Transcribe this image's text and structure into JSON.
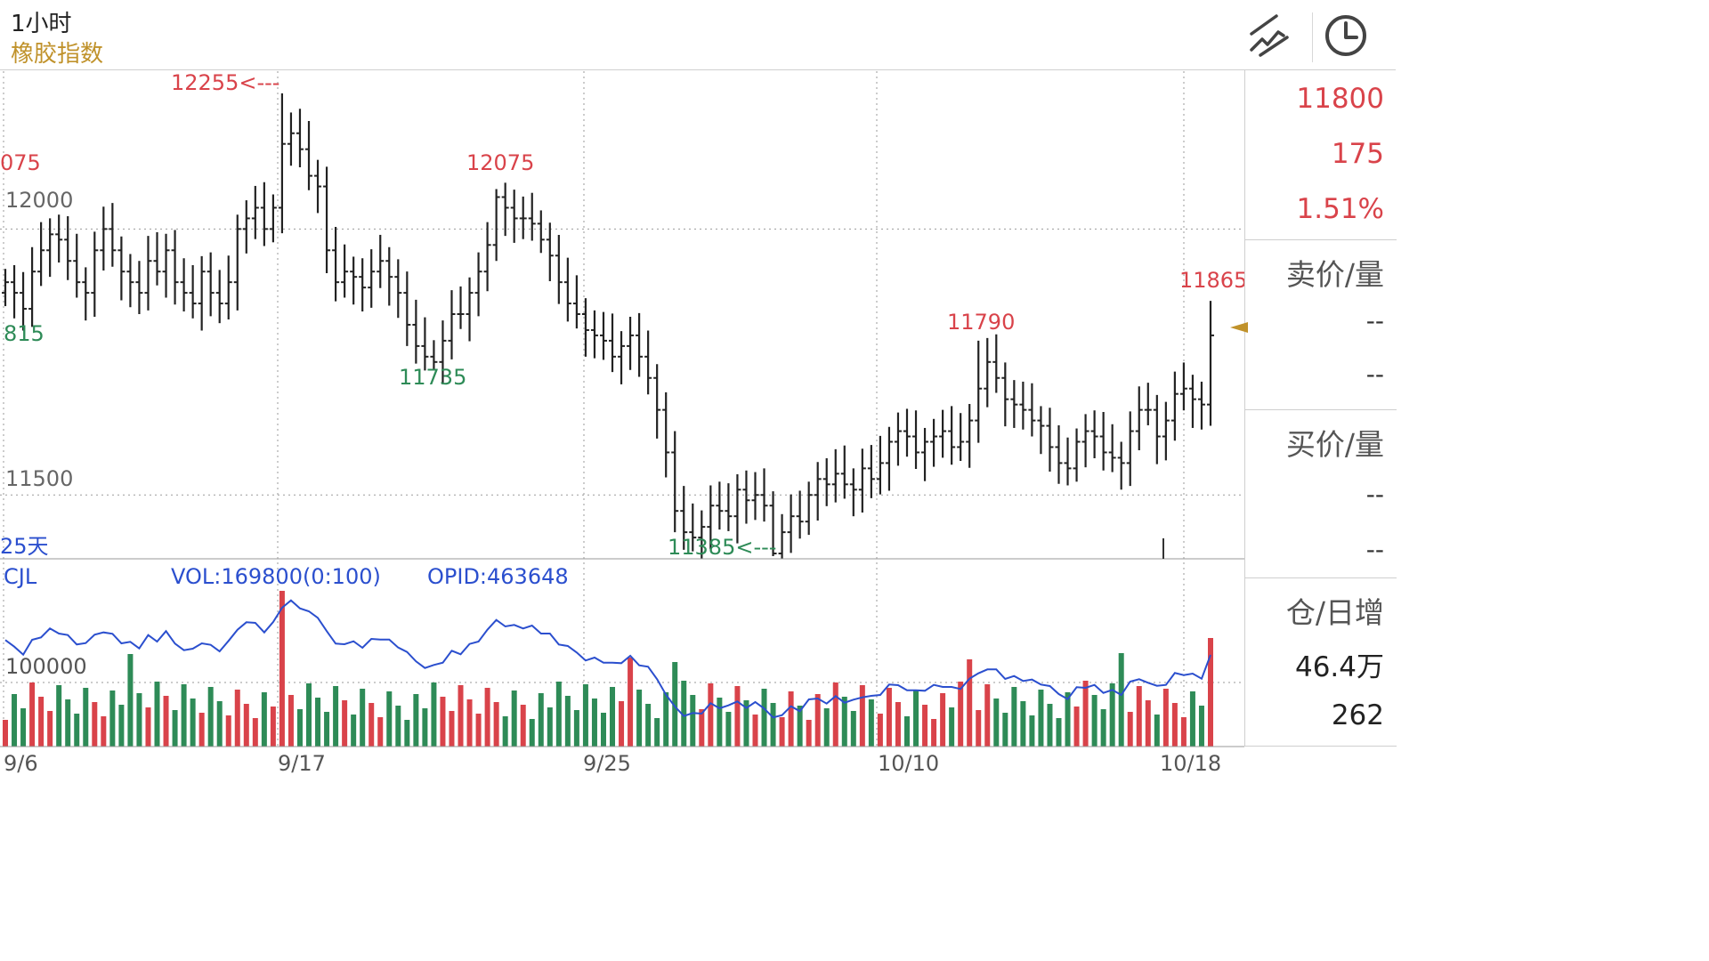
{
  "header": {
    "period": "1小时",
    "instrument": "橡胶指数"
  },
  "toolbar": {
    "draw_icon": "trend-line-icon",
    "time_icon": "clock-icon"
  },
  "side_panel": {
    "price": "11800",
    "change": "175",
    "change_pct": "1.51%",
    "ask_label": "卖价/量",
    "ask_price": "--",
    "ask_volume": "--",
    "bid_label": "买价/量",
    "bid_price": "--",
    "bid_volume": "--",
    "oi_label": "仓/日增",
    "oi_value": "46.4万",
    "oi_change": "262"
  },
  "main_chart": {
    "ma_label": "25天",
    "gridline_labels": [
      "12000",
      "11500"
    ],
    "annotations": [
      {
        "text": "12255<---",
        "color": "#d9434a"
      },
      {
        "text": "12075",
        "color": "#d9434a"
      },
      {
        "text": "11790",
        "color": "#d9434a"
      },
      {
        "text": "11865",
        "color": "#d9434a"
      },
      {
        "text": "11735",
        "color": "#2e8b57"
      },
      {
        "text": "11385<---",
        "color": "#2e8b57"
      },
      {
        "text": "075",
        "color": "#d9434a"
      },
      {
        "text": "815",
        "color": "#2e8b57"
      }
    ]
  },
  "volume_panel": {
    "label": "CJL",
    "vol_text": "VOL:169800(0:100)",
    "opid_text": "OPID:463648",
    "gridline_label": "100000"
  },
  "x_axis": [
    "9/6",
    "9/17",
    "9/25",
    "10/10",
    "10/18"
  ],
  "colors": {
    "up": "#d9434a",
    "down": "#2e8b57",
    "bar": "#222222",
    "oi_line": "#2b4fce",
    "brand": "#c0922b",
    "blue_text": "#2b4fce"
  },
  "chart_data": [
    {
      "type": "ohlc",
      "title": "",
      "ylabel": "",
      "ylim": [
        11380,
        12290
      ],
      "x_ticks": [
        "9/6",
        "9/17",
        "9/25",
        "10/10",
        "10/18"
      ],
      "closes": [
        11900,
        11880,
        11850,
        11920,
        11960,
        11990,
        11980,
        11940,
        11900,
        11880,
        11960,
        12000,
        11960,
        11920,
        11900,
        11880,
        11940,
        11920,
        11960,
        11900,
        11880,
        11860,
        11920,
        11880,
        11860,
        11900,
        12000,
        12020,
        12040,
        12000,
        12040,
        12160,
        12180,
        12150,
        12100,
        12080,
        11960,
        11900,
        11920,
        11910,
        11890,
        11920,
        11940,
        11910,
        11880,
        11820,
        11780,
        11760,
        11750,
        11790,
        11840,
        11840,
        11880,
        11920,
        11970,
        12060,
        12040,
        12020,
        12020,
        12010,
        11980,
        11950,
        11900,
        11860,
        11840,
        11810,
        11800,
        11790,
        11760,
        11780,
        11800,
        11760,
        11720,
        11660,
        11580,
        11470,
        11430,
        11420,
        11440,
        11480,
        11470,
        11460,
        11510,
        11490,
        11500,
        11480,
        11390,
        11430,
        11460,
        11450,
        11500,
        11530,
        11520,
        11540,
        11520,
        11510,
        11550,
        11530,
        11560,
        11600,
        11620,
        11610,
        11580,
        11600,
        11610,
        11620,
        11590,
        11600,
        11640,
        11700,
        11750,
        11720,
        11680,
        11670,
        11660,
        11640,
        11630,
        11590,
        11560,
        11550,
        11600,
        11620,
        11610,
        11580,
        11570,
        11560,
        11620,
        11660,
        11660,
        11610,
        11640,
        11690,
        11700,
        11680,
        11670,
        11800
      ],
      "series": [
        {
          "name": "",
          "type": "volume",
          "color_by": "direction"
        },
        {
          "name": "",
          "type": "line"
        }
      ],
      "annotations": [
        {
          "text": "12255<---",
          "value": 12255,
          "kind": "high"
        },
        {
          "text": "12075",
          "value": 12075,
          "kind": "high"
        },
        {
          "text": "11790",
          "value": 11790,
          "kind": "high"
        },
        {
          "text": "11865",
          "value": 11865,
          "kind": "high"
        },
        {
          "text": "11735",
          "value": 11735,
          "kind": "low"
        },
        {
          "text": "11385<---",
          "value": 11385,
          "kind": "low"
        }
      ]
    }
  ]
}
